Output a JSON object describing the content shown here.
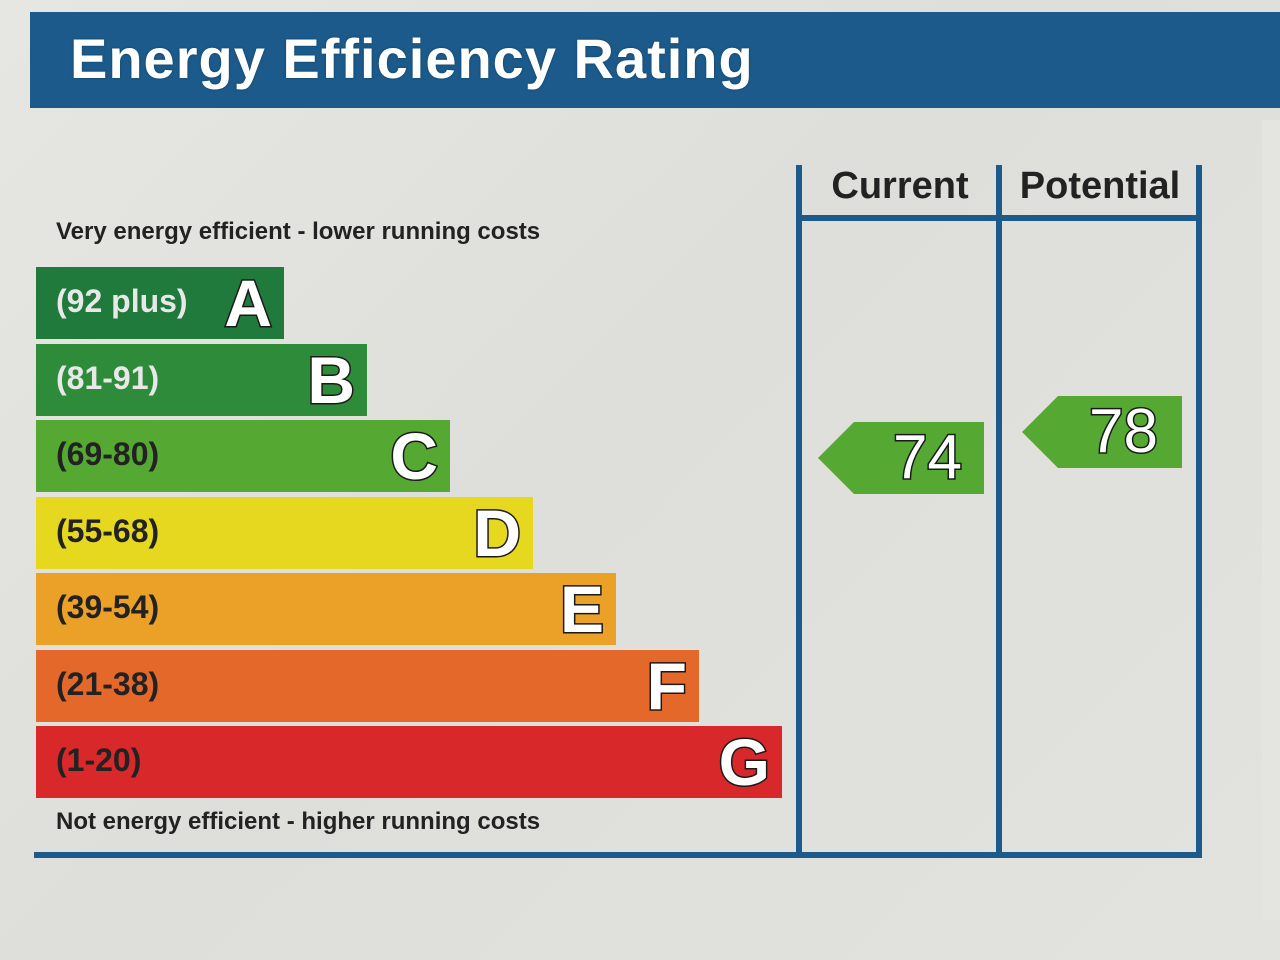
{
  "title": "Energy Efficiency Rating",
  "top_note": "Very energy efficient - lower running costs",
  "bottom_note": "Not energy efficient - higher running costs",
  "columns": {
    "current_label": "Current",
    "potential_label": "Potential"
  },
  "bands": [
    {
      "letter": "A",
      "range": "(92 plus)",
      "color": "#1f7a3c",
      "text_color": "#e8e8e8"
    },
    {
      "letter": "B",
      "range": "(81-91)",
      "color": "#2e8b3a",
      "text_color": "#e8e8e8"
    },
    {
      "letter": "C",
      "range": "(69-80)",
      "color": "#55a832",
      "text_color": "#222222"
    },
    {
      "letter": "D",
      "range": "(55-68)",
      "color": "#e6d81e",
      "text_color": "#222222"
    },
    {
      "letter": "E",
      "range": "(39-54)",
      "color": "#eba027",
      "text_color": "#222222"
    },
    {
      "letter": "F",
      "range": "(21-38)",
      "color": "#e4682a",
      "text_color": "#222222"
    },
    {
      "letter": "G",
      "range": "(1-20)",
      "color": "#d8282a",
      "text_color": "#222222"
    }
  ],
  "ratings": {
    "current": {
      "value": "74",
      "band": "C",
      "color": "#55a832"
    },
    "potential": {
      "value": "78",
      "band": "C",
      "color": "#55a832"
    }
  }
}
